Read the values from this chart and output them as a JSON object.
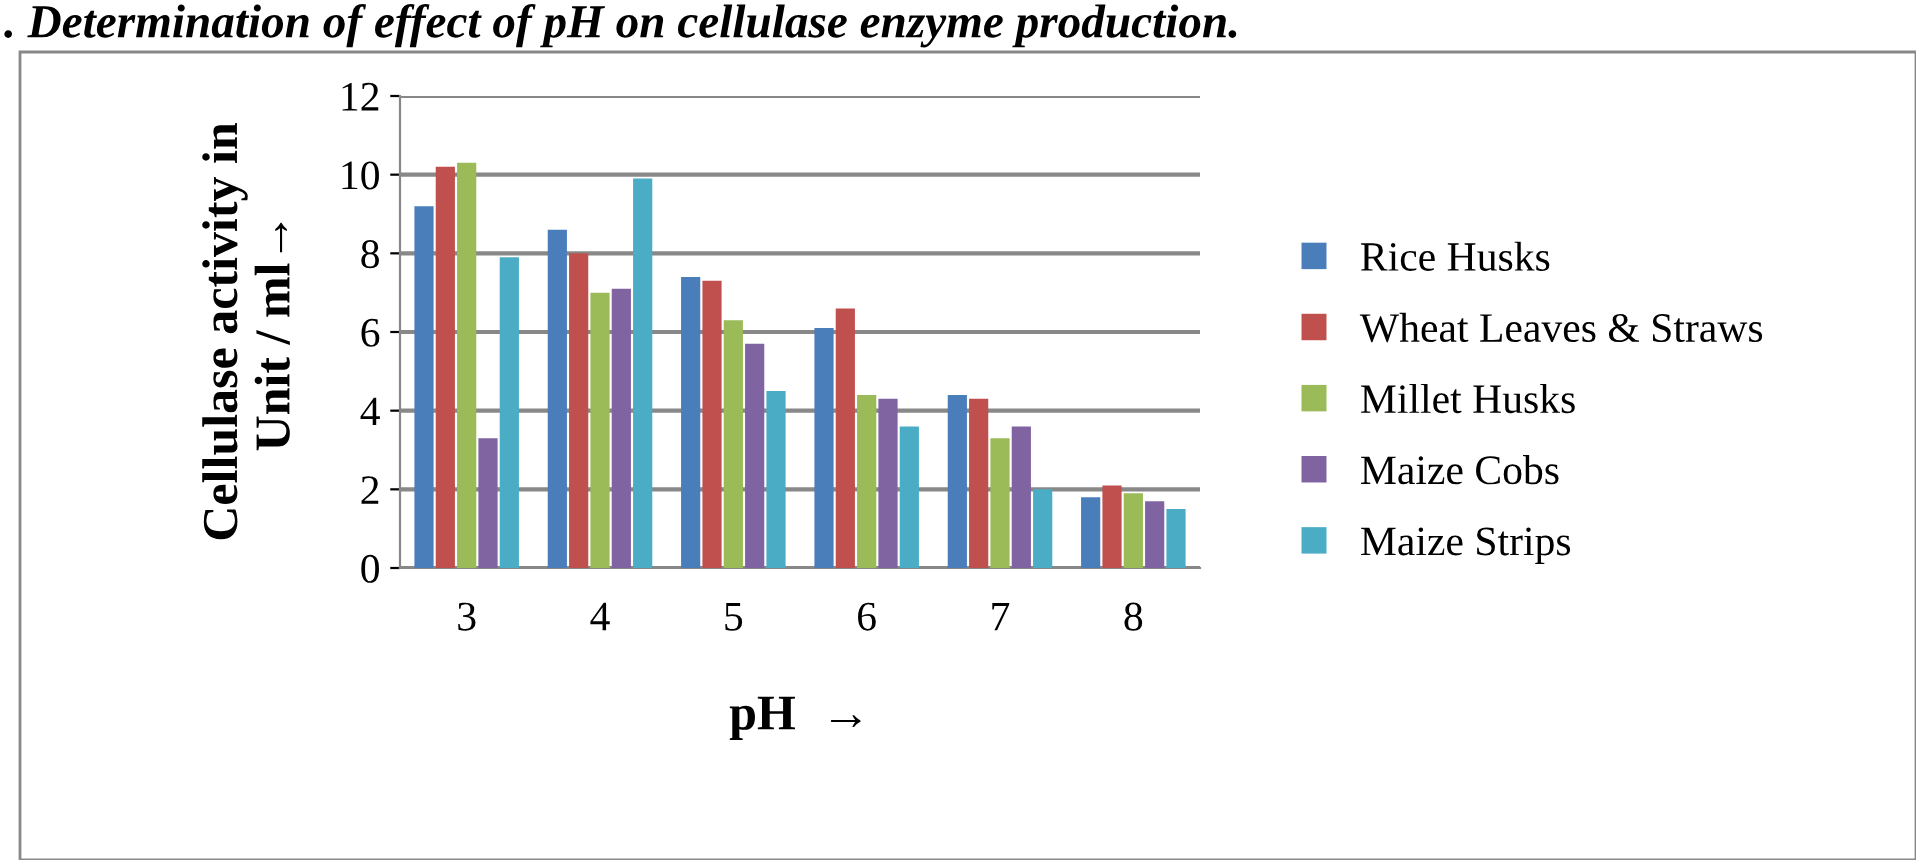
{
  "chart_data": {
    "type": "bar",
    "title": ". Determination of effect of pH on cellulase enzyme production.",
    "xlabel": "pH  →",
    "ylabel": "Cellulase activity in\nUnit / ml→",
    "categories": [
      "3",
      "4",
      "5",
      "6",
      "7",
      "8"
    ],
    "series": [
      {
        "name": "Rice Husks",
        "color": "#4a7ebb",
        "values": [
          9.2,
          8.6,
          7.4,
          6.1,
          4.4,
          1.8
        ]
      },
      {
        "name": "Wheat Leaves & Straws",
        "color": "#c0504d",
        "values": [
          10.2,
          8.0,
          7.3,
          6.6,
          4.3,
          2.1
        ]
      },
      {
        "name": "Millet Husks",
        "color": "#9bbb59",
        "values": [
          10.3,
          7.0,
          6.3,
          4.4,
          3.3,
          1.9
        ]
      },
      {
        "name": "Maize Cobs",
        "color": "#8064a2",
        "values": [
          3.3,
          7.1,
          5.7,
          4.3,
          3.6,
          1.7
        ]
      },
      {
        "name": "Maize Strips",
        "color": "#4bacc6",
        "values": [
          7.9,
          9.9,
          4.5,
          3.6,
          2.0,
          1.5
        ]
      }
    ],
    "ylim": [
      0,
      12
    ],
    "yticks": [
      0,
      2,
      4,
      6,
      8,
      10,
      12
    ],
    "grid": "y",
    "legend": "right"
  }
}
